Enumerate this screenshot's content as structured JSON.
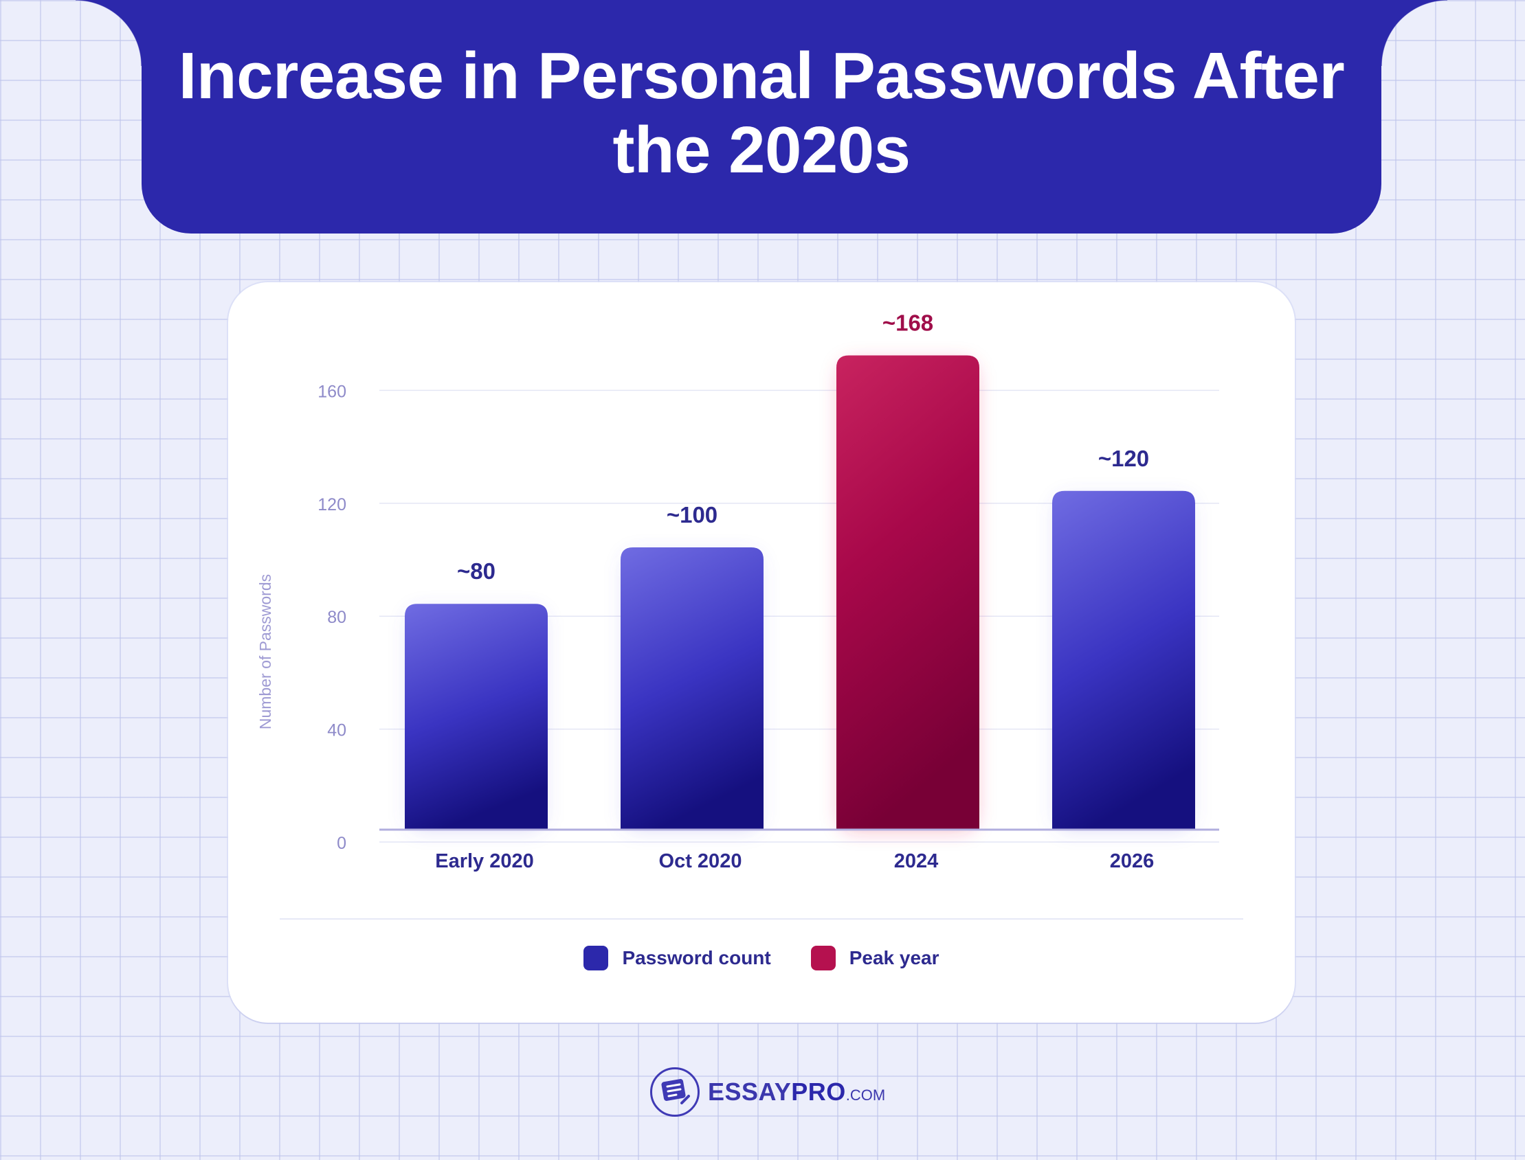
{
  "header": {
    "title": "Increase in Personal Passwords After the 2020s"
  },
  "colors": {
    "banner": "#2c28ab",
    "bar_primary_top": "#6e6ae0",
    "bar_primary_bottom": "#15107f",
    "bar_peak_top": "#c41d5d",
    "bar_peak_bottom": "#780036",
    "axis_text": "#8e8ac9",
    "category_text": "#2d2a8f",
    "value_text_primary": "#2d2a8f",
    "value_text_peak": "#a00e4a"
  },
  "chart_data": {
    "type": "bar",
    "categories": [
      "Early 2020",
      "Oct 2020",
      "2024",
      "2026"
    ],
    "values": [
      80,
      100,
      168,
      120
    ],
    "value_labels": [
      "~80",
      "~100",
      "~168",
      "~120"
    ],
    "highlight": [
      false,
      false,
      true,
      false
    ],
    "ylabel": "Number of Passwords",
    "ylim": [
      0,
      168
    ],
    "yticks": [
      0,
      40,
      80,
      120,
      160
    ],
    "grid": true,
    "legend_position": "bottom-center",
    "legend": [
      {
        "name": "Password count",
        "color": "#2c28ab"
      },
      {
        "name": "Peak year",
        "color": "#b5114f"
      }
    ]
  },
  "footer": {
    "logo_icon": "essay-document-pen-icon",
    "logo_main": "ESSAY",
    "logo_accent": "PRO",
    "logo_tld": ".COM"
  }
}
